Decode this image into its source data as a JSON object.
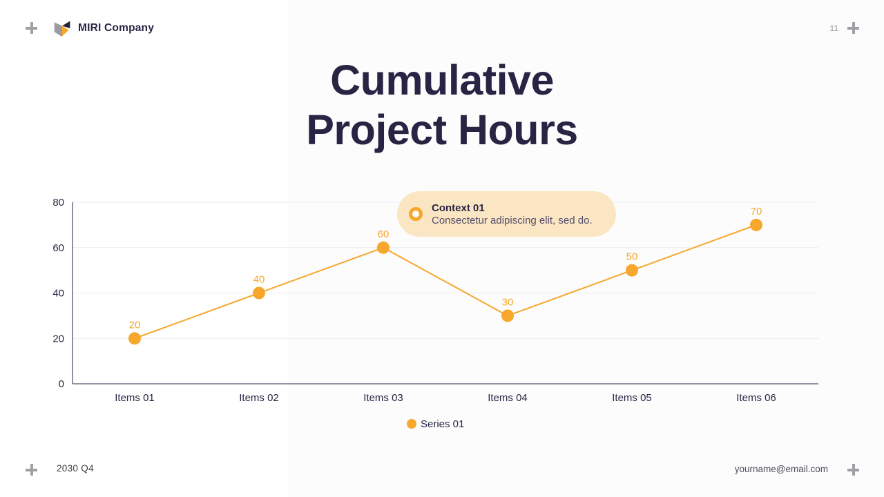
{
  "header": {
    "brand": "MIRI Company",
    "page_number": "11"
  },
  "title": {
    "line1": "Cumulative",
    "line2": "Project Hours"
  },
  "callout": {
    "title": "Context 01",
    "body": "Consectetur adipiscing elit, sed do."
  },
  "footer": {
    "date": "2030 Q4",
    "email": "yourname@email.com"
  },
  "icons": {
    "corner_marker": "plus-cross",
    "callout_bullet": "ring-circle",
    "legend_marker": "filled-circle",
    "brand_logo": "folded-book"
  },
  "colors": {
    "accent_orange": "#F6A72C",
    "navy": "#2A2444",
    "callout_bg": "#FBE6C3",
    "muted_gray": "#9EA0A6",
    "logo_gray": "#9D9BA0",
    "logo_navy": "#262138"
  },
  "chart_data": {
    "type": "line",
    "title": "Cumulative Project Hours",
    "categories": [
      "Items 01",
      "Items 02",
      "Items 03",
      "Items 04",
      "Items 05",
      "Items 06"
    ],
    "series": [
      {
        "name": "Series 01",
        "values": [
          20,
          40,
          60,
          30,
          50,
          70
        ]
      }
    ],
    "xlabel": "",
    "ylabel": "",
    "ylim": [
      0,
      80
    ],
    "yticks": [
      0,
      20,
      40,
      60,
      80
    ],
    "grid": true,
    "data_labels": true,
    "legend_position": "bottom-center",
    "colors": {
      "line": "#F6A72C",
      "point": "#F6A72C",
      "label": "#F6A72C",
      "axis": "#57506B",
      "gridline": "#EBEAEF",
      "tick_text": "#2A2444"
    }
  }
}
